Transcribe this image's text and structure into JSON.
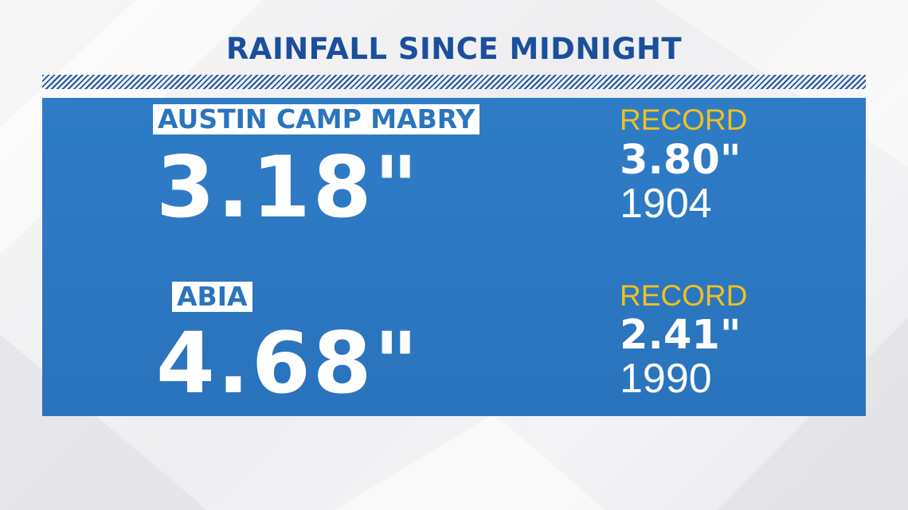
{
  "title": "RAINFALL SINCE MIDNIGHT",
  "stations": [
    {
      "name": "AUSTIN CAMP MABRY",
      "rainfall": "3.18\"",
      "record_label": "RECORD",
      "record_value": "3.80\"",
      "record_year": "1904"
    },
    {
      "name": "ABIA",
      "rainfall": "4.68\"",
      "record_label": "RECORD",
      "record_value": "2.41\"",
      "record_year": "1990"
    }
  ],
  "colors": {
    "title": "#1a4f9c",
    "panel": "#2f7cc6",
    "record_label": "#f0c21e",
    "text": "#ffffff"
  }
}
